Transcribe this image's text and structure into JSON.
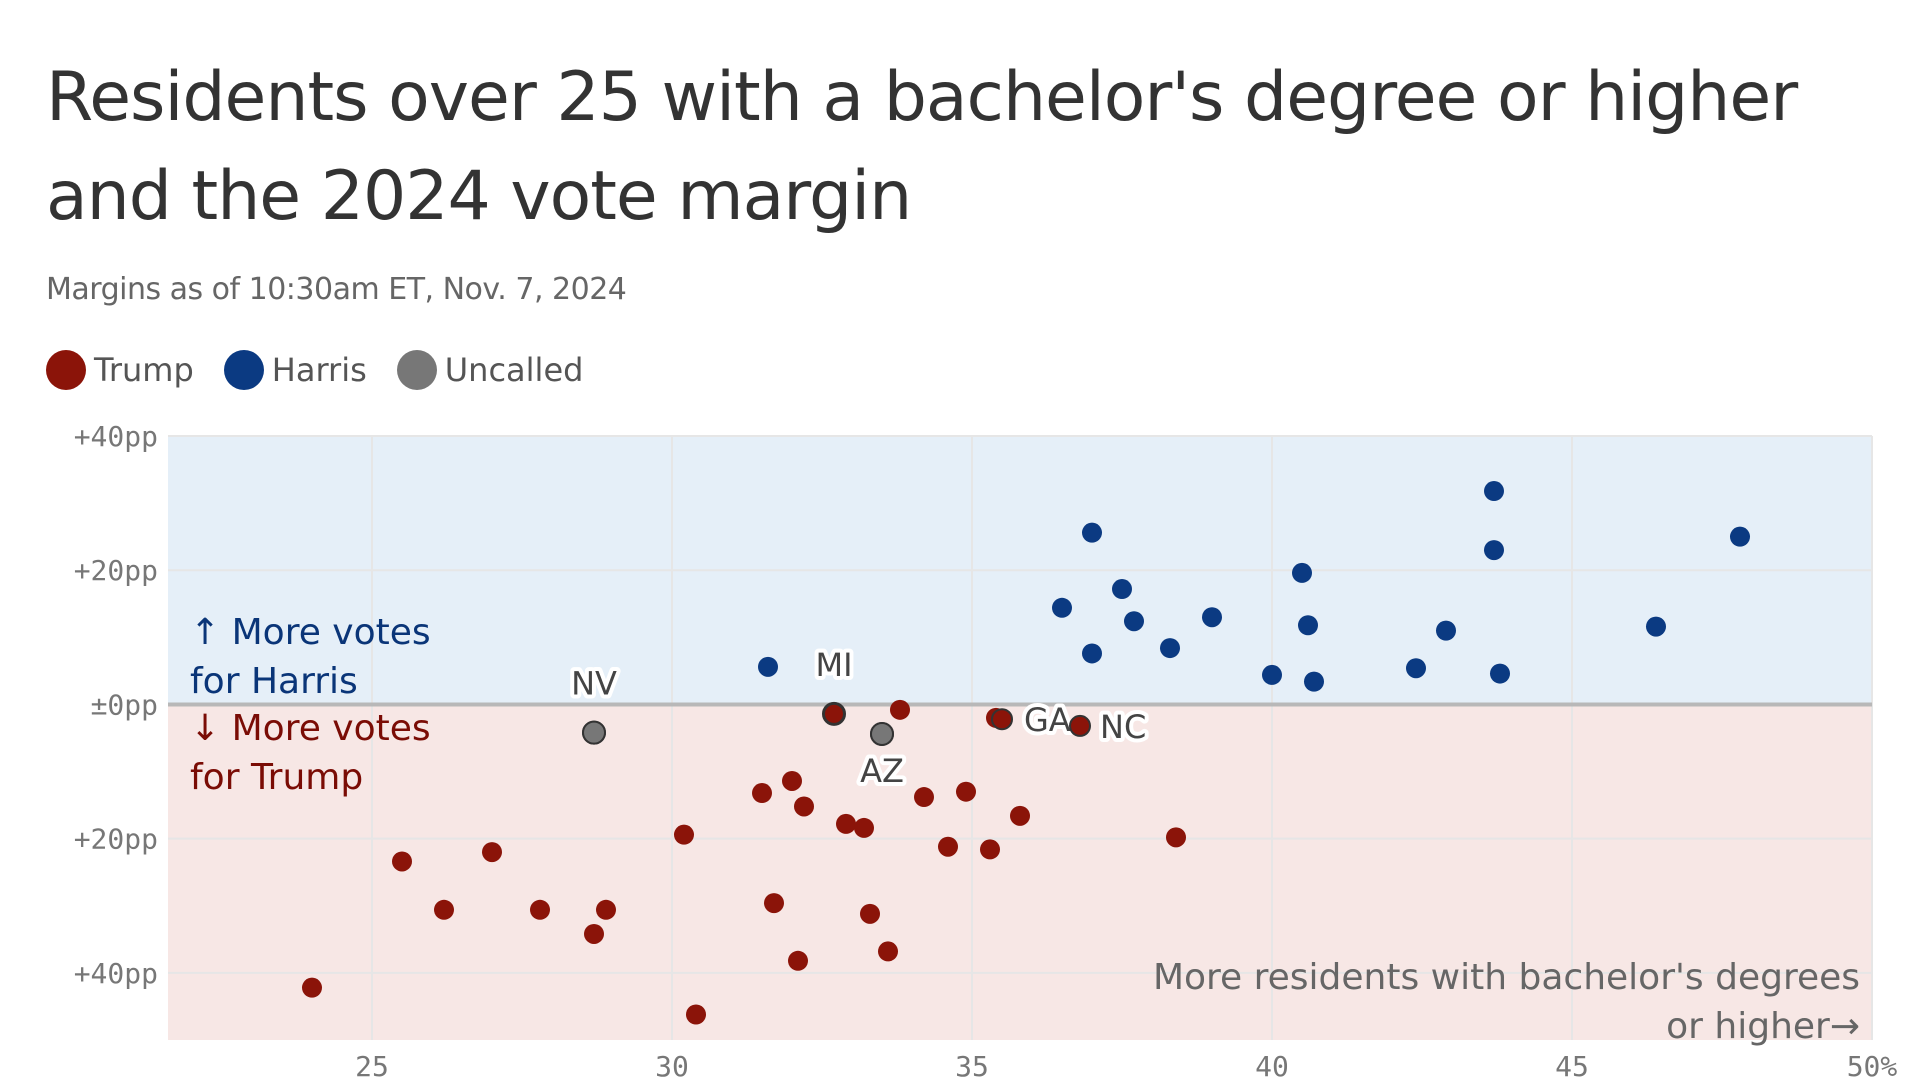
{
  "chart_data": {
    "type": "scatter",
    "title": "Residents over 25 with a bachelor's degree or higher and the 2024 vote margin",
    "subtitle": "Margins as of 10:30am ET, Nov. 7, 2024",
    "legend": [
      {
        "name": "Trump",
        "color": "#8b1409"
      },
      {
        "name": "Harris",
        "color": "#0b3a82"
      },
      {
        "name": "Uncalled",
        "color": "#777777"
      }
    ],
    "xlim": [
      21.6,
      50
    ],
    "ylim": [
      -50,
      40
    ],
    "x_ticks": [
      {
        "value": 25,
        "label": "25"
      },
      {
        "value": 30,
        "label": "30"
      },
      {
        "value": 35,
        "label": "35"
      },
      {
        "value": 40,
        "label": "40"
      },
      {
        "value": 45,
        "label": "45"
      },
      {
        "value": 50,
        "label": "50%"
      }
    ],
    "y_ticks": [
      {
        "value": 40,
        "label": "+40pp"
      },
      {
        "value": 20,
        "label": "+20pp"
      },
      {
        "value": 0,
        "label": "±0pp"
      },
      {
        "value": -20,
        "label": "+20pp"
      },
      {
        "value": -40,
        "label": "+40pp"
      }
    ],
    "grid": true,
    "colors": {
      "harris_band": "#e5eff8",
      "trump_band": "#f7e7e5",
      "zero_line": "#b8b8b8",
      "grid": "#e6e6e6"
    },
    "annotations": {
      "harris_line1": "↑ More votes",
      "harris_line2": "for Harris",
      "trump_line1": "↓ More votes",
      "trump_line2": "for Trump",
      "x_line1": "More residents with bachelor's degrees",
      "x_line2": "or higher→"
    },
    "series": [
      {
        "name": "Harris",
        "color": "#0b3a82",
        "points": [
          {
            "x": 31.6,
            "y": 5.6
          },
          {
            "x": 36.5,
            "y": 14.4
          },
          {
            "x": 37.0,
            "y": 25.6
          },
          {
            "x": 37.0,
            "y": 7.6
          },
          {
            "x": 37.5,
            "y": 17.2
          },
          {
            "x": 37.7,
            "y": 12.4
          },
          {
            "x": 38.3,
            "y": 8.4
          },
          {
            "x": 39.0,
            "y": 13.0
          },
          {
            "x": 40.0,
            "y": 4.4
          },
          {
            "x": 40.5,
            "y": 19.6
          },
          {
            "x": 40.6,
            "y": 11.8
          },
          {
            "x": 40.7,
            "y": 3.4
          },
          {
            "x": 42.4,
            "y": 5.4
          },
          {
            "x": 42.9,
            "y": 11.0
          },
          {
            "x": 43.7,
            "y": 31.8
          },
          {
            "x": 43.7,
            "y": 23.0
          },
          {
            "x": 43.8,
            "y": 4.6
          },
          {
            "x": 46.4,
            "y": 11.6
          },
          {
            "x": 47.8,
            "y": 25.0
          }
        ]
      },
      {
        "name": "Trump",
        "color": "#8b1409",
        "points": [
          {
            "x": 24.0,
            "y": -42.2
          },
          {
            "x": 25.5,
            "y": -23.4
          },
          {
            "x": 26.2,
            "y": -30.6
          },
          {
            "x": 27.0,
            "y": -22.0
          },
          {
            "x": 27.8,
            "y": -30.6
          },
          {
            "x": 28.7,
            "y": -34.2
          },
          {
            "x": 28.9,
            "y": -30.6
          },
          {
            "x": 30.2,
            "y": -19.4
          },
          {
            "x": 30.4,
            "y": -46.2
          },
          {
            "x": 31.5,
            "y": -13.2
          },
          {
            "x": 31.7,
            "y": -29.6
          },
          {
            "x": 32.0,
            "y": -11.4
          },
          {
            "x": 32.1,
            "y": -38.2
          },
          {
            "x": 32.2,
            "y": -15.2
          },
          {
            "x": 32.9,
            "y": -17.8
          },
          {
            "x": 33.2,
            "y": -18.4
          },
          {
            "x": 33.3,
            "y": -31.2
          },
          {
            "x": 33.6,
            "y": -36.8
          },
          {
            "x": 33.8,
            "y": -0.8
          },
          {
            "x": 34.2,
            "y": -13.8
          },
          {
            "x": 34.6,
            "y": -21.2
          },
          {
            "x": 34.9,
            "y": -13.0
          },
          {
            "x": 35.3,
            "y": -21.6
          },
          {
            "x": 35.4,
            "y": -2.0
          },
          {
            "x": 35.8,
            "y": -16.6
          },
          {
            "x": 38.4,
            "y": -19.8
          }
        ]
      },
      {
        "name": "Uncalled",
        "color": "#777777",
        "points": [
          {
            "x": 28.7,
            "y": -4.2
          },
          {
            "x": 32.7,
            "y": -1.4
          },
          {
            "x": 33.5,
            "y": -4.4
          }
        ]
      }
    ],
    "labeled_points": [
      {
        "label": "NV",
        "x": 28.7,
        "y": -4.2,
        "color": "#777777",
        "dx": 0,
        "dy": -38,
        "anchor": "middle"
      },
      {
        "label": "MI",
        "x": 32.7,
        "y": -1.4,
        "color": "#8b1409",
        "dx": 0,
        "dy": -38,
        "anchor": "middle"
      },
      {
        "label": "AZ",
        "x": 33.5,
        "y": -4.4,
        "color": "#777777",
        "dx": 0,
        "dy": 48,
        "anchor": "middle"
      },
      {
        "label": "GA",
        "x": 35.5,
        "y": -2.2,
        "color": "#8b1409",
        "dx": 22,
        "dy": 12,
        "anchor": "start"
      },
      {
        "label": "NC",
        "x": 36.8,
        "y": -3.2,
        "color": "#8b1409",
        "dx": 20,
        "dy": 12,
        "anchor": "start"
      }
    ]
  }
}
